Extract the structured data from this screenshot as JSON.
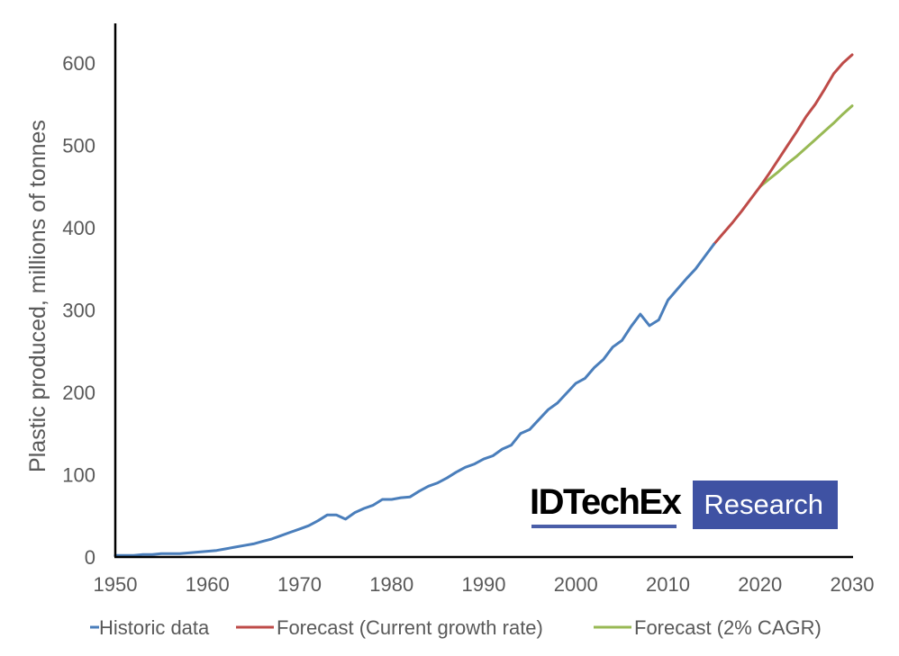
{
  "chart_data": {
    "type": "line",
    "title": "",
    "xlabel": "",
    "ylabel": "Plastic produced, millions of tonnes",
    "xlim": [
      1950,
      2030
    ],
    "ylim": [
      0,
      650
    ],
    "x_ticks": [
      1950,
      1960,
      1970,
      1980,
      1990,
      2000,
      2010,
      2020,
      2030
    ],
    "y_ticks": [
      0,
      100,
      200,
      300,
      400,
      500,
      600
    ],
    "grid": false,
    "legend_position": "bottom",
    "series": [
      {
        "name": "Historic data",
        "color": "#4a7ebb",
        "x": [
          1950,
          1951,
          1952,
          1953,
          1954,
          1955,
          1956,
          1957,
          1958,
          1959,
          1960,
          1961,
          1962,
          1963,
          1964,
          1965,
          1966,
          1967,
          1968,
          1969,
          1970,
          1971,
          1972,
          1973,
          1974,
          1975,
          1976,
          1977,
          1978,
          1979,
          1980,
          1981,
          1982,
          1983,
          1984,
          1985,
          1986,
          1987,
          1988,
          1989,
          1990,
          1991,
          1992,
          1993,
          1994,
          1995,
          1996,
          1997,
          1998,
          1999,
          2000,
          2001,
          2002,
          2003,
          2004,
          2005,
          2006,
          2007,
          2008,
          2009,
          2010,
          2011,
          2012,
          2013,
          2014,
          2015
        ],
        "values": [
          2,
          2,
          2,
          3,
          3,
          4,
          4,
          4,
          5,
          6,
          7,
          8,
          10,
          12,
          14,
          16,
          19,
          22,
          26,
          30,
          34,
          38,
          44,
          51,
          51,
          46,
          54,
          59,
          63,
          70,
          70,
          72,
          73,
          80,
          86,
          90,
          96,
          103,
          109,
          113,
          119,
          123,
          131,
          136,
          150,
          155,
          167,
          179,
          187,
          199,
          211,
          217,
          230,
          240,
          255,
          263,
          280,
          295,
          281,
          288,
          312,
          325,
          338,
          350,
          365,
          380
        ]
      },
      {
        "name": "Forecast (Current growth rate)",
        "color": "#be4b48",
        "x": [
          2015,
          2016,
          2017,
          2018,
          2019,
          2020,
          2021,
          2022,
          2023,
          2024,
          2025,
          2026,
          2027,
          2028,
          2029,
          2030
        ],
        "values": [
          380,
          393,
          406,
          420,
          435,
          450,
          466,
          483,
          500,
          517,
          535,
          550,
          568,
          587,
          600,
          610
        ]
      },
      {
        "name": "Forecast (2% CAGR)",
        "color": "#98b954",
        "x": [
          2020,
          2021,
          2022,
          2023,
          2024,
          2025,
          2026,
          2027,
          2028,
          2029,
          2030
        ],
        "values": [
          450,
          459,
          468,
          478,
          487,
          497,
          507,
          517,
          527,
          538,
          548
        ]
      }
    ]
  },
  "branding": {
    "logo_main": "IDTechEx",
    "logo_badge": "Research"
  }
}
